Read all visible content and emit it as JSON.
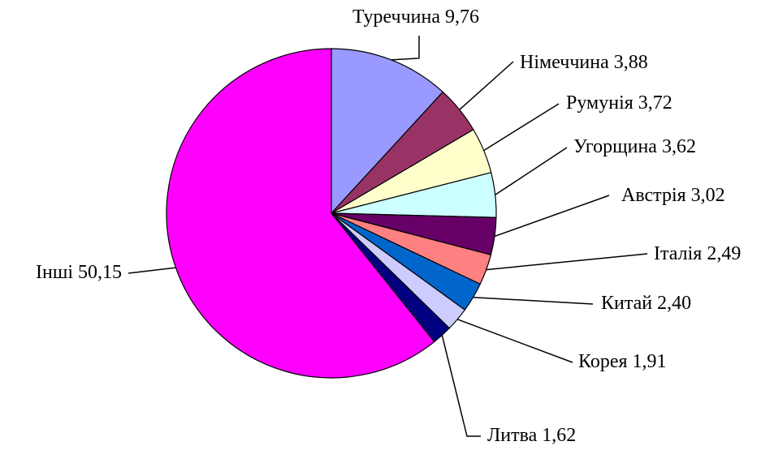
{
  "chart_data": {
    "type": "pie",
    "categories": [
      "Туреччина",
      "Німеччина",
      "Румунія",
      "Угорщина",
      "Австрія",
      "Італія",
      "Китай",
      "Корея",
      "Литва",
      "Інші"
    ],
    "values": [
      9.76,
      3.88,
      3.72,
      3.62,
      3.02,
      2.49,
      2.4,
      1.91,
      1.62,
      50.15
    ],
    "value_labels": [
      "9,76",
      "3,88",
      "3,72",
      "3,62",
      "3,02",
      "2,49",
      "2,40",
      "1,91",
      "1,62",
      "50,15"
    ],
    "colors": [
      "#9999ff",
      "#993366",
      "#ffffcc",
      "#ccffff",
      "#660066",
      "#ff8080",
      "#0066cc",
      "#ccccff",
      "#000080",
      "#ff00ff"
    ]
  }
}
